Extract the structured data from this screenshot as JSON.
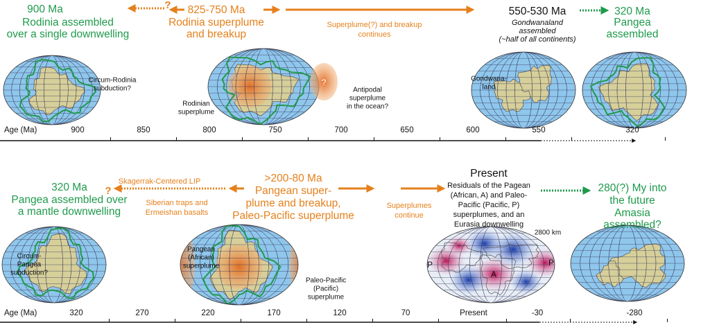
{
  "top": {
    "rodinia": {
      "age": "900 Ma",
      "lines": [
        "Rodinia assembled",
        "over a single downwelling"
      ]
    },
    "unknown_mark": "?",
    "breakup": {
      "age": "825-750 Ma",
      "lines": [
        "Rodinia superplume",
        "and breakup"
      ]
    },
    "continues": [
      "Superplume(?) and breakup",
      "continues"
    ],
    "gondwana": {
      "age": "550-530 Ma",
      "lines": [
        "Gondwanaland",
        "assembled",
        "(~half of all continents)"
      ]
    },
    "pangea": {
      "age": "320 Ma",
      "lines": [
        "Pangea",
        "assembled"
      ]
    },
    "labels": {
      "circum_rodinia": [
        "Circum-Rodinia",
        "subduction?"
      ],
      "rodinian_superplume": [
        "Rodinian",
        "superplume"
      ],
      "antipodal_mark": "?",
      "antipodal": [
        "Antipodal",
        "superplume",
        "in the ocean?"
      ],
      "gondwanaland": [
        "Gondwana-",
        "land"
      ]
    },
    "timeline": {
      "axis_label": "Age (Ma)",
      "ticks": [
        900,
        850,
        800,
        750,
        700,
        650,
        600,
        550,
        320
      ]
    }
  },
  "bottom": {
    "skagerrak": "Skagerrak-Centered LIP",
    "unknown_mark": "?",
    "pangea": {
      "age": "320 Ma",
      "lines": [
        "Pangea assembled over",
        "a mantle downwelling"
      ]
    },
    "siberian": [
      "Siberian traps and",
      "Ermeishan basalts"
    ],
    "superplume": {
      "age": ">200-80 Ma",
      "lines": [
        "Pangean super-",
        "plume  and breakup,",
        "Paleo-Pacific superplume"
      ]
    },
    "continue": [
      "Superplumes",
      "continue"
    ],
    "present": {
      "title": "Present",
      "lines": [
        "Residuals of the Pagean",
        "(African, A) and Paleo-",
        "Pacific (Pacific, P)",
        "superplumes, and an",
        "Eurasia downwelling"
      ]
    },
    "amasia": {
      "age": "280(?) My into",
      "lines": [
        "the future",
        "Amasia",
        "assembled?"
      ]
    },
    "depth": "2800 km",
    "labels": {
      "circum_pangea": [
        "Circum-",
        "Pangea",
        "subduction?"
      ],
      "pangean_superplume": [
        "Pangean",
        "(African)",
        "superplume"
      ],
      "paleo_pacific": [
        "Paleo-Pacific",
        "(Pacific)",
        "superplume"
      ],
      "tomo_p_left": "P",
      "tomo_a": "A",
      "tomo_p_right": "P"
    },
    "timeline": {
      "axis_label": "Age (Ma)",
      "ticks": [
        320,
        270,
        220,
        170,
        120,
        70,
        "Present",
        -30,
        -280
      ]
    }
  }
}
